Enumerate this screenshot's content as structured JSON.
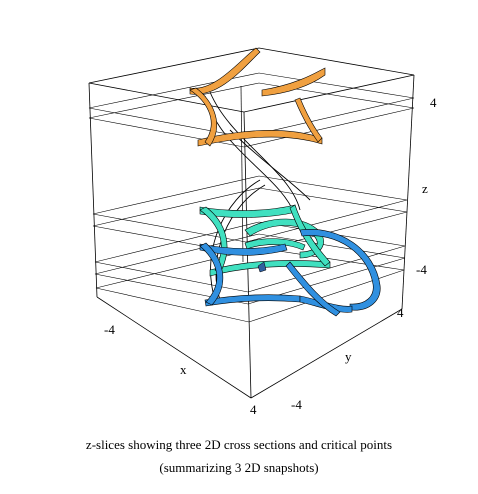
{
  "figure": {
    "axis_labels": {
      "x": "x",
      "y": "y",
      "z": "z"
    },
    "ticks": {
      "x_min": "-4",
      "x_max": "4",
      "y_min": "-4",
      "y_max": "4",
      "z_top": "4",
      "z_bottom": "-4"
    },
    "caption_line1": "z-slices showing three 2D cross sections and critical points",
    "caption_line2": "(summarizing 3 2D snapshots)",
    "colors": {
      "frame": "#000000",
      "top_slice": "#f0a040",
      "middle_slice": "#40e0c0",
      "bottom_slice": "#3090e0",
      "slice_stroke": "#000000"
    }
  }
}
